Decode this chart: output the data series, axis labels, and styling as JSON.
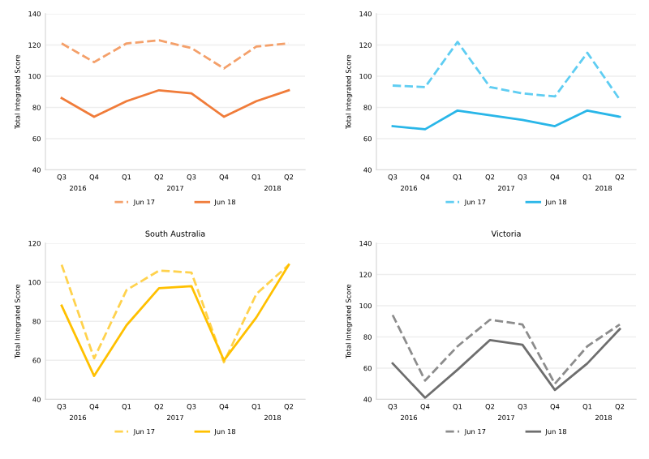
{
  "chart_data": [
    {
      "type": "line",
      "ylabel": "Total Integrated Score",
      "categories": [
        "Q3",
        "Q4",
        "Q1",
        "Q2",
        "Q3",
        "Q4",
        "Q1",
        "Q2"
      ],
      "ylim": [
        40,
        140
      ],
      "yticks": [
        40,
        60,
        80,
        100,
        120,
        140
      ],
      "grid": "y",
      "legend": "bottom",
      "annotations": [
        "2016",
        "2017",
        "2018"
      ],
      "series": [
        {
          "name": "Jun 17",
          "color": "#f4a06a",
          "line_style": "dashed",
          "values": [
            121,
            109,
            121,
            123,
            118,
            105,
            119,
            121
          ]
        },
        {
          "name": "Jun 18",
          "color": "#f07c3a",
          "line_style": "solid",
          "values": [
            86,
            74,
            84,
            91,
            89,
            74,
            84,
            91
          ]
        }
      ]
    },
    {
      "type": "line",
      "ylabel": "Total Integrated Score",
      "categories": [
        "Q3",
        "Q4",
        "Q1",
        "Q2",
        "Q3",
        "Q4",
        "Q1",
        "Q2"
      ],
      "ylim": [
        40,
        140
      ],
      "yticks": [
        40,
        60,
        80,
        100,
        120,
        140
      ],
      "grid": "y",
      "legend": "bottom",
      "annotations": [
        "2016",
        "2017",
        "2018"
      ],
      "series": [
        {
          "name": "Jun 17",
          "color": "#5fcdf2",
          "line_style": "dashed",
          "values": [
            94,
            93,
            122,
            93,
            89,
            87,
            115,
            85
          ]
        },
        {
          "name": "Jun 18",
          "color": "#29b6e8",
          "line_style": "solid",
          "values": [
            68,
            66,
            78,
            75,
            72,
            68,
            78,
            74
          ]
        }
      ]
    },
    {
      "type": "line",
      "title": "South Australia",
      "ylabel": "Total Integrated Score",
      "categories": [
        "Q3",
        "Q4",
        "Q1",
        "Q2",
        "Q3",
        "Q4",
        "Q1",
        "Q2"
      ],
      "ylim": [
        40,
        120
      ],
      "yticks": [
        40,
        60,
        80,
        100,
        120
      ],
      "grid": "y",
      "legend": "bottom",
      "annotations": [
        "2016",
        "2017",
        "2018"
      ],
      "series": [
        {
          "name": "Jun 17",
          "color": "#ffd24d",
          "line_style": "dashed",
          "values": [
            109,
            61,
            96,
            106,
            105,
            59,
            94,
            109
          ]
        },
        {
          "name": "Jun 18",
          "color": "#ffc000",
          "line_style": "solid",
          "values": [
            88,
            52,
            78,
            97,
            98,
            60,
            82,
            109
          ]
        }
      ]
    },
    {
      "type": "line",
      "title": "Victoria",
      "ylabel": "Total Integrated Score",
      "categories": [
        "Q3",
        "Q4",
        "Q1",
        "Q2",
        "Q3",
        "Q4",
        "Q1",
        "Q2"
      ],
      "ylim": [
        40,
        140
      ],
      "yticks": [
        40,
        60,
        80,
        100,
        120,
        140
      ],
      "grid": "y",
      "legend": "bottom",
      "annotations": [
        "2016",
        "2017",
        "2018"
      ],
      "series": [
        {
          "name": "Jun 17",
          "color": "#8c8c8c",
          "line_style": "dashed",
          "values": [
            94,
            52,
            74,
            91,
            88,
            50,
            74,
            88
          ]
        },
        {
          "name": "Jun 18",
          "color": "#6e6e6e",
          "line_style": "solid",
          "values": [
            63,
            41,
            59,
            78,
            75,
            46,
            63,
            85
          ]
        }
      ]
    }
  ]
}
